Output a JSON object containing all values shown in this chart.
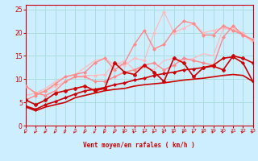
{
  "title": "",
  "xlabel": "Vent moyen/en rafales ( km/h )",
  "xlim": [
    0,
    23
  ],
  "ylim": [
    0,
    26
  ],
  "yticks": [
    0,
    5,
    10,
    15,
    20,
    25
  ],
  "xticks": [
    0,
    1,
    2,
    3,
    4,
    5,
    6,
    7,
    8,
    9,
    10,
    11,
    12,
    13,
    14,
    15,
    16,
    17,
    18,
    19,
    20,
    21,
    22,
    23
  ],
  "bg_color": "#cceeff",
  "grid_color": "#aadddd",
  "series": [
    {
      "x": [
        0,
        1,
        2,
        3,
        4,
        5,
        6,
        7,
        8,
        9,
        10,
        11,
        12,
        13,
        14,
        15,
        16,
        17,
        18,
        19,
        20,
        21,
        22,
        23
      ],
      "y": [
        4.0,
        3.2,
        4.0,
        4.5,
        5.0,
        6.0,
        6.5,
        7.0,
        7.5,
        7.8,
        8.0,
        8.5,
        8.8,
        9.0,
        9.2,
        9.5,
        9.8,
        10.0,
        10.2,
        10.5,
        10.8,
        11.0,
        10.8,
        9.5
      ],
      "color": "#cc0000",
      "lw": 1.2,
      "marker": null,
      "ls": "-",
      "zorder": 4
    },
    {
      "x": [
        0,
        1,
        2,
        3,
        4,
        5,
        6,
        7,
        8,
        9,
        10,
        11,
        12,
        13,
        14,
        15,
        16,
        17,
        18,
        19,
        20,
        21,
        22,
        23
      ],
      "y": [
        4.2,
        3.5,
        4.5,
        5.2,
        6.0,
        6.8,
        7.5,
        7.8,
        8.2,
        8.8,
        9.2,
        9.8,
        10.2,
        10.8,
        11.2,
        11.5,
        12.0,
        12.2,
        12.5,
        13.0,
        14.5,
        14.8,
        13.5,
        9.5
      ],
      "color": "#cc0000",
      "lw": 1.2,
      "marker": "D",
      "ms": 2.0,
      "ls": "-",
      "zorder": 4
    },
    {
      "x": [
        0,
        1,
        2,
        3,
        4,
        5,
        6,
        7,
        8,
        9,
        10,
        11,
        12,
        13,
        14,
        15,
        16,
        17,
        18,
        19,
        20,
        21,
        22,
        23
      ],
      "y": [
        5.5,
        4.5,
        5.5,
        7.0,
        7.5,
        8.0,
        8.5,
        7.5,
        8.0,
        13.5,
        11.5,
        11.0,
        13.0,
        11.5,
        9.5,
        14.5,
        13.5,
        10.5,
        12.5,
        12.8,
        12.0,
        15.0,
        14.5,
        13.5
      ],
      "color": "#cc0000",
      "lw": 1.2,
      "marker": "P",
      "ms": 3.0,
      "ls": "-",
      "zorder": 4
    },
    {
      "x": [
        0,
        1,
        2,
        3,
        4,
        5,
        6,
        7,
        8,
        9,
        10,
        11,
        12,
        13,
        14,
        15,
        16,
        17,
        18,
        19,
        20,
        21,
        22,
        23
      ],
      "y": [
        8.5,
        7.0,
        6.5,
        7.5,
        9.5,
        10.5,
        10.5,
        9.5,
        9.5,
        10.5,
        11.5,
        12.0,
        13.0,
        13.5,
        12.0,
        13.0,
        14.5,
        14.0,
        13.5,
        13.0,
        19.0,
        21.5,
        19.5,
        18.5
      ],
      "color": "#ff8888",
      "lw": 1.0,
      "marker": "D",
      "ms": 2.0,
      "ls": "-",
      "zorder": 3
    },
    {
      "x": [
        0,
        1,
        2,
        3,
        4,
        5,
        6,
        7,
        8,
        9,
        10,
        11,
        12,
        13,
        14,
        15,
        16,
        17,
        18,
        19,
        20,
        21,
        22,
        23
      ],
      "y": [
        5.5,
        6.5,
        7.5,
        9.0,
        10.5,
        11.0,
        11.5,
        13.5,
        14.5,
        12.0,
        13.5,
        17.5,
        20.5,
        16.5,
        17.5,
        20.5,
        22.5,
        22.0,
        19.5,
        19.5,
        21.5,
        20.5,
        19.5,
        18.5
      ],
      "color": "#ff8888",
      "lw": 1.0,
      "marker": "D",
      "ms": 2.0,
      "ls": "-",
      "zorder": 3
    },
    {
      "x": [
        0,
        1,
        2,
        3,
        4,
        5,
        6,
        7,
        8,
        9,
        10,
        11,
        12,
        13,
        14,
        15,
        16,
        17,
        18,
        19,
        20,
        21,
        22,
        23
      ],
      "y": [
        8.5,
        7.0,
        7.5,
        8.5,
        9.5,
        10.5,
        10.8,
        10.8,
        11.0,
        13.5,
        13.0,
        14.5,
        14.0,
        20.0,
        24.5,
        20.0,
        21.0,
        22.0,
        20.0,
        20.5,
        21.0,
        20.5,
        20.0,
        18.0
      ],
      "color": "#ffbbbb",
      "lw": 0.9,
      "marker": "D",
      "ms": 2.0,
      "ls": "-",
      "zorder": 2
    },
    {
      "x": [
        0,
        1,
        2,
        3,
        4,
        5,
        6,
        7,
        8,
        9,
        10,
        11,
        12,
        13,
        14,
        15,
        16,
        17,
        18,
        19,
        20,
        21,
        22,
        23
      ],
      "y": [
        6.5,
        7.0,
        8.0,
        9.5,
        10.5,
        11.0,
        12.5,
        14.0,
        14.5,
        13.0,
        14.0,
        12.0,
        12.5,
        12.0,
        14.0,
        14.5,
        14.0,
        14.5,
        15.5,
        15.0,
        21.0,
        21.0,
        19.5,
        18.0
      ],
      "color": "#ffbbbb",
      "lw": 0.9,
      "marker": null,
      "ls": "-",
      "zorder": 2
    }
  ],
  "arrow_color": "#cc0000",
  "xlabel_color": "#cc0000",
  "tick_color": "#cc0000",
  "axis_color": "#cc0000"
}
